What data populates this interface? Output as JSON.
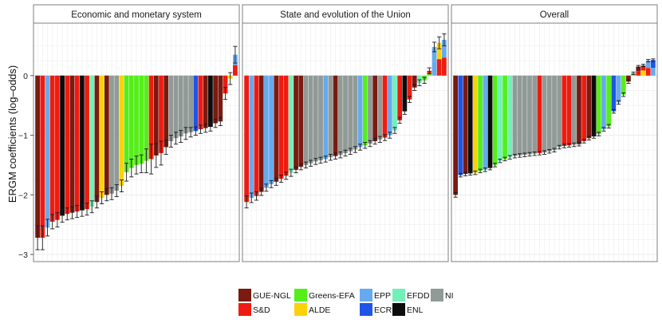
{
  "chart_data": {
    "type": "bar",
    "ylabel": "ERGM coefficients (log–odds)",
    "xlabel": "",
    "ylim": [
      -3.12,
      0.88
    ],
    "yticks": [
      {
        "value": 0,
        "label": "0"
      },
      {
        "value": -1,
        "label": "−1"
      },
      {
        "value": -2,
        "label": "−2"
      },
      {
        "value": -3,
        "label": "−3"
      }
    ],
    "grid": true,
    "legend_position": "bottom",
    "groups": {
      "GUE-NGL": "#7a1a10",
      "S&D": "#ef1b10",
      "Greens-EFA": "#55ee1a",
      "ALDE": "#fbd20a",
      "EPP": "#66aaee",
      "ECR": "#1f55e6",
      "EFDD": "#72f0b8",
      "ENL": "#0c0c0c",
      "NI": "#909a96"
    },
    "legend": {
      "rows": [
        [
          "GUE-NGL",
          "Greens-EFA",
          "EPP",
          "EFDD",
          "NI"
        ],
        [
          "S&D",
          "ALDE",
          "ECR",
          "ENL"
        ]
      ]
    },
    "panels": [
      {
        "title": "Economic and monetary system",
        "bars": [
          {
            "value": -2.72,
            "ci": 0.2,
            "stack": [
              "GUE-NGL"
            ]
          },
          {
            "value": -2.72,
            "ci": 0.2,
            "stack": [
              "S&D"
            ]
          },
          {
            "value": -2.55,
            "ci": 0.14,
            "stack": [
              "EPP"
            ]
          },
          {
            "value": -2.45,
            "ci": 0.12,
            "stack": [
              "S&D"
            ]
          },
          {
            "value": -2.42,
            "ci": 0.12,
            "stack": [
              "S&D"
            ]
          },
          {
            "value": -2.35,
            "ci": 0.11,
            "stack": [
              "ENL"
            ]
          },
          {
            "value": -2.32,
            "ci": 0.1,
            "stack": [
              "S&D"
            ]
          },
          {
            "value": -2.3,
            "ci": 0.1,
            "stack": [
              "GUE-NGL"
            ]
          },
          {
            "value": -2.28,
            "ci": 0.1,
            "stack": [
              "S&D"
            ]
          },
          {
            "value": -2.26,
            "ci": 0.1,
            "stack": [
              "ENL"
            ]
          },
          {
            "value": -2.24,
            "ci": 0.1,
            "stack": [
              "S&D"
            ]
          },
          {
            "value": -2.2,
            "ci": 0.1,
            "stack": [
              "EFDD"
            ]
          },
          {
            "value": -2.12,
            "ci": 0.1,
            "stack": [
              "GUE-NGL"
            ]
          },
          {
            "value": -2.05,
            "ci": 0.1,
            "stack": [
              "ALDE"
            ]
          },
          {
            "value": -2.0,
            "ci": 0.1,
            "stack": [
              "GUE-NGL"
            ]
          },
          {
            "value": -1.98,
            "ci": 0.1,
            "stack": [
              "NI"
            ]
          },
          {
            "value": -1.93,
            "ci": 0.1,
            "stack": [
              "NI"
            ]
          },
          {
            "value": -1.85,
            "ci": 0.1,
            "stack": [
              "ALDE"
            ]
          },
          {
            "value": -1.62,
            "ci": 0.15,
            "stack": [
              "Greens-EFA"
            ]
          },
          {
            "value": -1.55,
            "ci": 0.15,
            "stack": [
              "Greens-EFA"
            ]
          },
          {
            "value": -1.5,
            "ci": 0.15,
            "stack": [
              "Greens-EFA"
            ]
          },
          {
            "value": -1.48,
            "ci": 0.15,
            "stack": [
              "Greens-EFA"
            ]
          },
          {
            "value": -1.43,
            "ci": 0.2,
            "stack": [
              "Greens-EFA"
            ]
          },
          {
            "value": -1.4,
            "ci": 0.25,
            "stack": [
              "S&D"
            ]
          },
          {
            "value": -1.34,
            "ci": 0.2,
            "stack": [
              "GUE-NGL"
            ]
          },
          {
            "value": -1.3,
            "ci": 0.2,
            "stack": [
              "S&D"
            ]
          },
          {
            "value": -1.2,
            "ci": 0.12,
            "stack": [
              "GUE-NGL"
            ]
          },
          {
            "value": -1.1,
            "ci": 0.1,
            "stack": [
              "NI"
            ]
          },
          {
            "value": -1.05,
            "ci": 0.1,
            "stack": [
              "NI"
            ]
          },
          {
            "value": -1.02,
            "ci": 0.1,
            "stack": [
              "NI"
            ]
          },
          {
            "value": -0.97,
            "ci": 0.1,
            "stack": [
              "NI"
            ]
          },
          {
            "value": -0.95,
            "ci": 0.08,
            "stack": [
              "NI"
            ]
          },
          {
            "value": -0.93,
            "ci": 0.07,
            "stack": [
              "ECR"
            ]
          },
          {
            "value": -0.9,
            "ci": 0.07,
            "stack": [
              "S&D"
            ]
          },
          {
            "value": -0.88,
            "ci": 0.07,
            "stack": [
              "GUE-NGL"
            ]
          },
          {
            "value": -0.86,
            "ci": 0.07,
            "stack": [
              "ENL"
            ]
          },
          {
            "value": -0.8,
            "ci": 0.07,
            "stack": [
              "GUE-NGL"
            ]
          },
          {
            "value": -0.77,
            "ci": 0.07,
            "stack": [
              "GUE-NGL"
            ]
          },
          {
            "value": -0.3,
            "ci": 0.1,
            "stack": [
              "S&D"
            ]
          },
          {
            "value": -0.05,
            "ci": 0.1,
            "stack": [
              "ALDE"
            ]
          },
          {
            "value": 0.35,
            "ci": 0.14,
            "stack": [
              "EPP",
              "S&D"
            ]
          }
        ]
      },
      {
        "title": "State and evolution of the Union",
        "bars": [
          {
            "value": -2.12,
            "ci": 0.1,
            "stack": [
              "S&D"
            ]
          },
          {
            "value": -2.05,
            "ci": 0.08,
            "stack": [
              "EPP"
            ]
          },
          {
            "value": -2.02,
            "ci": 0.07,
            "stack": [
              "S&D"
            ]
          },
          {
            "value": -1.95,
            "ci": 0.06,
            "stack": [
              "GUE-NGL"
            ]
          },
          {
            "value": -1.88,
            "ci": 0.06,
            "stack": [
              "EPP"
            ]
          },
          {
            "value": -1.82,
            "ci": 0.06,
            "stack": [
              "EPP"
            ]
          },
          {
            "value": -1.78,
            "ci": 0.06,
            "stack": [
              "GUE-NGL"
            ]
          },
          {
            "value": -1.73,
            "ci": 0.06,
            "stack": [
              "S&D"
            ]
          },
          {
            "value": -1.68,
            "ci": 0.06,
            "stack": [
              "S&D"
            ]
          },
          {
            "value": -1.63,
            "ci": 0.06,
            "stack": [
              "EFDD"
            ]
          },
          {
            "value": -1.58,
            "ci": 0.05,
            "stack": [
              "GUE-NGL"
            ]
          },
          {
            "value": -1.53,
            "ci": 0.05,
            "stack": [
              "GUE-NGL"
            ]
          },
          {
            "value": -1.5,
            "ci": 0.05,
            "stack": [
              "NI"
            ]
          },
          {
            "value": -1.47,
            "ci": 0.05,
            "stack": [
              "NI"
            ]
          },
          {
            "value": -1.44,
            "ci": 0.05,
            "stack": [
              "NI"
            ]
          },
          {
            "value": -1.42,
            "ci": 0.05,
            "stack": [
              "NI"
            ]
          },
          {
            "value": -1.4,
            "ci": 0.05,
            "stack": [
              "EPP"
            ]
          },
          {
            "value": -1.37,
            "ci": 0.05,
            "stack": [
              "NI"
            ]
          },
          {
            "value": -1.35,
            "ci": 0.05,
            "stack": [
              "GUE-NGL"
            ]
          },
          {
            "value": -1.33,
            "ci": 0.05,
            "stack": [
              "NI"
            ]
          },
          {
            "value": -1.3,
            "ci": 0.05,
            "stack": [
              "NI"
            ]
          },
          {
            "value": -1.27,
            "ci": 0.05,
            "stack": [
              "NI"
            ]
          },
          {
            "value": -1.24,
            "ci": 0.05,
            "stack": [
              "NI"
            ]
          },
          {
            "value": -1.2,
            "ci": 0.05,
            "stack": [
              "EPP"
            ]
          },
          {
            "value": -1.17,
            "ci": 0.05,
            "stack": [
              "Greens-EFA"
            ]
          },
          {
            "value": -1.14,
            "ci": 0.05,
            "stack": [
              "NI"
            ]
          },
          {
            "value": -1.1,
            "ci": 0.05,
            "stack": [
              "GUE-NGL"
            ]
          },
          {
            "value": -1.07,
            "ci": 0.05,
            "stack": [
              "NI"
            ]
          },
          {
            "value": -1.04,
            "ci": 0.05,
            "stack": [
              "S&D"
            ]
          },
          {
            "value": -1.0,
            "ci": 0.05,
            "stack": [
              "EPP"
            ]
          },
          {
            "value": -0.92,
            "ci": 0.05,
            "stack": [
              "EFDD"
            ]
          },
          {
            "value": -0.75,
            "ci": 0.05,
            "stack": [
              "S&D"
            ]
          },
          {
            "value": -0.6,
            "ci": 0.05,
            "stack": [
              "ENL"
            ]
          },
          {
            "value": -0.4,
            "ci": 0.05,
            "stack": [
              "S&D"
            ]
          },
          {
            "value": -0.2,
            "ci": 0.05,
            "stack": [
              "GUE-NGL"
            ]
          },
          {
            "value": -0.12,
            "ci": 0.05,
            "stack": [
              "EFDD"
            ]
          },
          {
            "value": -0.08,
            "ci": 0.05,
            "stack": [
              "Greens-EFA"
            ]
          },
          {
            "value": 0.08,
            "ci": 0.05,
            "stack": [
              "S&D",
              "Greens-EFA"
            ]
          },
          {
            "value": 0.48,
            "ci": 0.08,
            "stack": [
              "EPP",
              "EPP"
            ]
          },
          {
            "value": 0.55,
            "ci": 0.1,
            "stack": [
              "ALDE",
              "S&D"
            ]
          },
          {
            "value": 0.6,
            "ci": 0.1,
            "stack": [
              "EPP",
              "S&D"
            ]
          }
        ]
      },
      {
        "title": "Overall",
        "bars": [
          {
            "value": -2.0,
            "ci": 0.04,
            "stack": [
              "GUE-NGL"
            ]
          },
          {
            "value": -1.67,
            "ci": 0.03,
            "stack": [
              "ECR"
            ]
          },
          {
            "value": -1.65,
            "ci": 0.03,
            "stack": [
              "GUE-NGL"
            ]
          },
          {
            "value": -1.64,
            "ci": 0.03,
            "stack": [
              "ENL"
            ]
          },
          {
            "value": -1.63,
            "ci": 0.03,
            "stack": [
              "ALDE"
            ]
          },
          {
            "value": -1.6,
            "ci": 0.03,
            "stack": [
              "Greens-EFA"
            ]
          },
          {
            "value": -1.58,
            "ci": 0.03,
            "stack": [
              "EPP"
            ]
          },
          {
            "value": -1.55,
            "ci": 0.03,
            "stack": [
              "ENL"
            ]
          },
          {
            "value": -1.5,
            "ci": 0.03,
            "stack": [
              "Greens-EFA"
            ]
          },
          {
            "value": -1.43,
            "ci": 0.03,
            "stack": [
              "EFDD"
            ]
          },
          {
            "value": -1.4,
            "ci": 0.03,
            "stack": [
              "Greens-EFA"
            ]
          },
          {
            "value": -1.37,
            "ci": 0.03,
            "stack": [
              "EFDD"
            ]
          },
          {
            "value": -1.35,
            "ci": 0.03,
            "stack": [
              "NI"
            ]
          },
          {
            "value": -1.34,
            "ci": 0.03,
            "stack": [
              "NI"
            ]
          },
          {
            "value": -1.33,
            "ci": 0.03,
            "stack": [
              "NI"
            ]
          },
          {
            "value": -1.32,
            "ci": 0.03,
            "stack": [
              "NI"
            ]
          },
          {
            "value": -1.31,
            "ci": 0.03,
            "stack": [
              "NI"
            ]
          },
          {
            "value": -1.3,
            "ci": 0.03,
            "stack": [
              "S&D"
            ]
          },
          {
            "value": -1.29,
            "ci": 0.03,
            "stack": [
              "NI"
            ]
          },
          {
            "value": -1.27,
            "ci": 0.03,
            "stack": [
              "NI"
            ]
          },
          {
            "value": -1.25,
            "ci": 0.03,
            "stack": [
              "NI"
            ]
          },
          {
            "value": -1.2,
            "ci": 0.03,
            "stack": [
              "NI"
            ]
          },
          {
            "value": -1.18,
            "ci": 0.03,
            "stack": [
              "S&D"
            ]
          },
          {
            "value": -1.17,
            "ci": 0.03,
            "stack": [
              "S&D"
            ]
          },
          {
            "value": -1.16,
            "ci": 0.03,
            "stack": [
              "NI"
            ]
          },
          {
            "value": -1.15,
            "ci": 0.03,
            "stack": [
              "GUE-NGL"
            ]
          },
          {
            "value": -1.1,
            "ci": 0.03,
            "stack": [
              "S&D"
            ]
          },
          {
            "value": -1.05,
            "ci": 0.03,
            "stack": [
              "GUE-NGL"
            ]
          },
          {
            "value": -1.02,
            "ci": 0.03,
            "stack": [
              "ENL"
            ]
          },
          {
            "value": -0.98,
            "ci": 0.03,
            "stack": [
              "Greens-EFA"
            ]
          },
          {
            "value": -0.9,
            "ci": 0.03,
            "stack": [
              "EPP"
            ]
          },
          {
            "value": -0.85,
            "ci": 0.03,
            "stack": [
              "Greens-EFA"
            ]
          },
          {
            "value": -0.6,
            "ci": 0.03,
            "stack": [
              "ECR"
            ]
          },
          {
            "value": -0.45,
            "ci": 0.03,
            "stack": [
              "EPP"
            ]
          },
          {
            "value": -0.32,
            "ci": 0.03,
            "stack": [
              "Greens-EFA"
            ]
          },
          {
            "value": -0.1,
            "ci": 0.03,
            "stack": [
              "GUE-NGL"
            ]
          },
          {
            "value": 0.04,
            "ci": 0.02,
            "stack": [
              "Greens-EFA"
            ]
          },
          {
            "value": 0.15,
            "ci": 0.02,
            "stack": [
              "GUE-NGL",
              "S&D"
            ]
          },
          {
            "value": 0.17,
            "ci": 0.02,
            "stack": [
              "S&D",
              "ALDE"
            ]
          },
          {
            "value": 0.25,
            "ci": 0.02,
            "stack": [
              "EPP",
              "S&D"
            ]
          },
          {
            "value": 0.26,
            "ci": 0.02,
            "stack": [
              "ECR",
              "EPP"
            ]
          }
        ]
      }
    ]
  }
}
